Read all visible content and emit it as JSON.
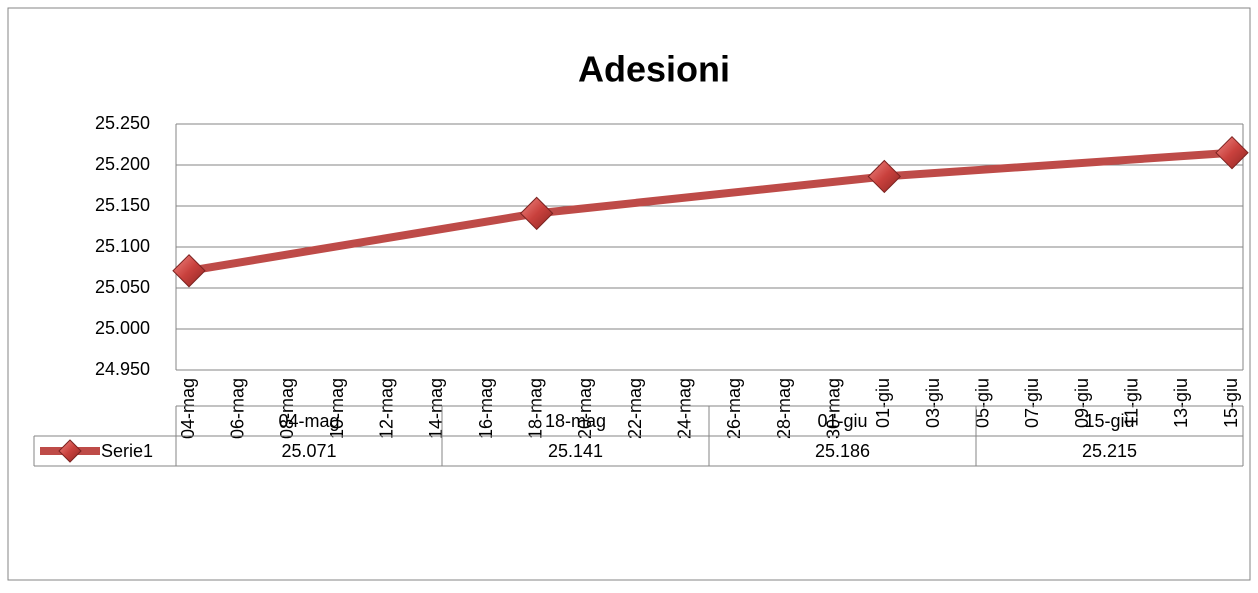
{
  "chart_data": {
    "type": "line",
    "title": "Adesioni",
    "x": [
      "04-mag",
      "18-mag",
      "01-giu",
      "15-giu"
    ],
    "xticks": [
      "04-mag",
      "06-mag",
      "08-mag",
      "10-mag",
      "12-mag",
      "14-mag",
      "16-mag",
      "18-mag",
      "20-mag",
      "22-mag",
      "24-mag",
      "26-mag",
      "28-mag",
      "30-mag",
      "01-giu",
      "03-giu",
      "05-giu",
      "07-giu",
      "09-giu",
      "11-giu",
      "13-giu",
      "15-giu"
    ],
    "series": [
      {
        "name": "Serie1",
        "color": "#be4b48",
        "values": [
          25071,
          25141,
          25186,
          25215
        ],
        "value_labels": [
          "25.071",
          "25.141",
          "25.186",
          "25.215"
        ]
      }
    ],
    "ylim": [
      24950,
      25250
    ],
    "yticks": [
      {
        "value": 24950,
        "label": "24.950"
      },
      {
        "value": 25000,
        "label": "25.000"
      },
      {
        "value": 25050,
        "label": "25.050"
      },
      {
        "value": 25100,
        "label": "25.100"
      },
      {
        "value": 25150,
        "label": "25.150"
      },
      {
        "value": 25200,
        "label": "25.200"
      },
      {
        "value": 25250,
        "label": "25.250"
      }
    ],
    "grid": true
  }
}
